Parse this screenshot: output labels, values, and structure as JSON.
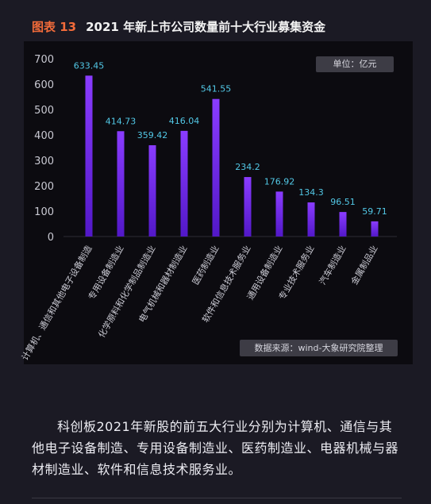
{
  "figure_label": "图表 13",
  "figure_title": "2021 年新上市公司数量前十大行业募集资金",
  "unit_label": "单位：亿元",
  "source_label": "数据来源：wind-大象研究院整理",
  "caption": "科创板2021年新股的前五大行业分别为计算机、通信与其他电子设备制造、专用设备制造业、医药制造业、电器机械与器材制造业、软件和信息技术服务业。",
  "colors": {
    "bar_top": "#8a3cff",
    "bar_bottom": "#5218c8",
    "label": "#52c8e6",
    "axis_text": "#c9c9d2",
    "accent": "#f26b3a"
  },
  "chart_data": {
    "type": "bar",
    "title": "2021 年新上市公司数量前十大行业募集资金",
    "xlabel": "",
    "ylabel": "",
    "unit": "亿元",
    "ylim": [
      0,
      700
    ],
    "yticks": [
      0,
      100,
      200,
      300,
      400,
      500,
      600,
      700
    ],
    "grid": false,
    "categories": [
      "计算机、通信和其他电子设备制造",
      "专用设备制造业",
      "化学原料和化学制品制造业",
      "电气机械和器材制造业",
      "医药制造业",
      "软件和信息技术服务业",
      "通用设备制造业",
      "专业技术服务业",
      "汽车制造业",
      "金属制品业"
    ],
    "values": [
      633.45,
      414.73,
      359.42,
      416.04,
      541.55,
      234.2,
      176.92,
      134.3,
      96.51,
      59.71
    ],
    "value_labels": [
      "633.45",
      "414.73",
      "359.42",
      "416.04",
      "541.55",
      "234.2",
      "176.92",
      "134.3",
      "96.51",
      "59.71"
    ]
  }
}
